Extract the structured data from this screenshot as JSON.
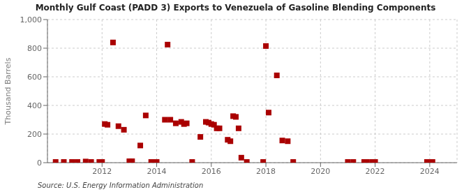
{
  "chart_data": {
    "type": "scatter",
    "title": "Monthly Gulf Coast (PADD 3) Exports to Venezuela of Gasoline Blending Components",
    "ylabel": "Thousand Barrels",
    "annotations": [
      "Source: U.S. Energy Information Administration"
    ],
    "color": "#aa0000",
    "marker": "square",
    "grid": true,
    "xlim": [
      2010.0,
      2025.0
    ],
    "xticks": [
      2012,
      2014,
      2016,
      2018,
      2020,
      2022,
      2024
    ],
    "ylim": [
      0,
      1000
    ],
    "yticks": [
      0,
      200,
      400,
      600,
      800,
      {
        "value": 1000,
        "label": "1,000"
      }
    ],
    "x": [
      2010.3,
      2010.6,
      2010.9,
      2011.1,
      2011.4,
      2011.6,
      2011.9,
      2012.0,
      2012.1,
      2012.2,
      2012.4,
      2012.6,
      2012.8,
      2013.0,
      2013.1,
      2013.4,
      2013.6,
      2013.8,
      2013.9,
      2014.0,
      2014.3,
      2014.4,
      2014.5,
      2014.7,
      2014.9,
      2015.0,
      2015.1,
      2015.3,
      2015.6,
      2015.8,
      2015.9,
      2016.0,
      2016.1,
      2016.2,
      2016.3,
      2016.6,
      2016.7,
      2016.8,
      2016.9,
      2017.0,
      2017.1,
      2017.3,
      2017.9,
      2018.0,
      2018.1,
      2018.4,
      2018.6,
      2018.8,
      2019.0,
      2021.0,
      2021.2,
      2021.6,
      2021.7,
      2021.9,
      2022.0,
      2023.9,
      2024.1
    ],
    "values": [
      5,
      5,
      5,
      5,
      8,
      5,
      5,
      5,
      270,
      265,
      840,
      255,
      230,
      10,
      10,
      120,
      330,
      5,
      5,
      5,
      300,
      825,
      300,
      275,
      285,
      270,
      275,
      5,
      180,
      285,
      280,
      270,
      265,
      240,
      240,
      160,
      150,
      325,
      320,
      240,
      35,
      5,
      5,
      815,
      350,
      610,
      155,
      150,
      5,
      5,
      5,
      5,
      5,
      5,
      5,
      5,
      5
    ]
  }
}
